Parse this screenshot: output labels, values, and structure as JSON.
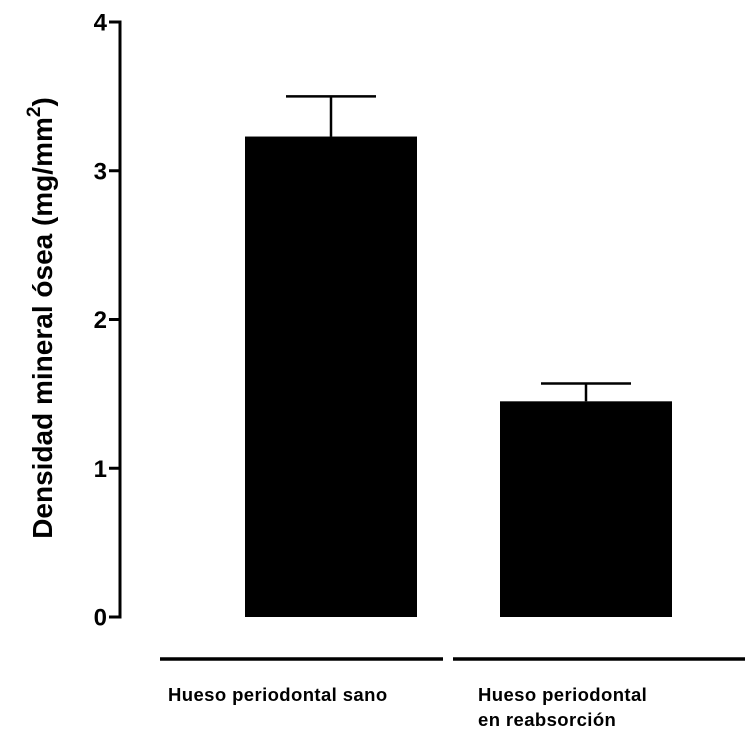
{
  "chart_data": {
    "type": "bar",
    "categories": [
      [
        "Hueso periodontal sano"
      ],
      [
        "Hueso periodontal",
        "en reabsorción"
      ]
    ],
    "values": [
      3.23,
      1.45
    ],
    "errors": [
      0.27,
      0.12
    ],
    "ylabel": {
      "main": "Densidad mineral ósea (mg/mm",
      "sup": "2",
      "close": ")"
    },
    "ylim": [
      0,
      4
    ],
    "yticks": [
      "0",
      "1",
      "2",
      "3",
      "4"
    ],
    "grid": false,
    "bar_color": "#000000"
  }
}
